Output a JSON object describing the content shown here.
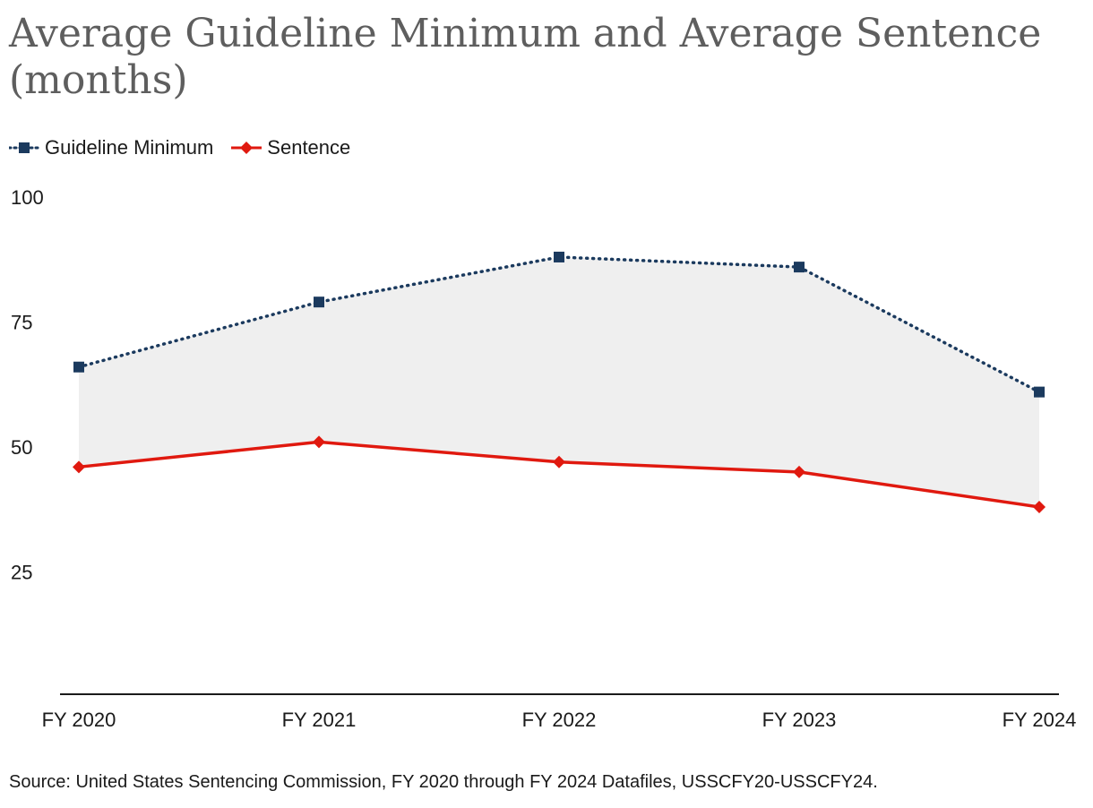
{
  "chart_data": {
    "type": "line",
    "title": "Average Guideline Minimum and Average Sentence (months)",
    "categories": [
      "FY 2020",
      "FY 2021",
      "FY 2022",
      "FY 2023",
      "FY 2024"
    ],
    "series": [
      {
        "name": "Guideline Minimum",
        "values": [
          66,
          79,
          88,
          86,
          61
        ],
        "color": "#1b3a5e",
        "style": "dotted",
        "marker": "square"
      },
      {
        "name": "Sentence",
        "values": [
          46,
          51,
          47,
          45,
          38
        ],
        "color": "#e0190f",
        "style": "solid",
        "marker": "diamond"
      }
    ],
    "fill_between_color": "#efefef",
    "yticks": [
      25,
      50,
      75,
      100
    ],
    "ylim": [
      0,
      100
    ],
    "xlabel": "",
    "ylabel": "",
    "legend_position": "top-left",
    "grid": false,
    "source": "Source: United States Sentencing Commission, FY 2020 through FY 2024 Datafiles, USSCFY20-USSCFY24."
  }
}
